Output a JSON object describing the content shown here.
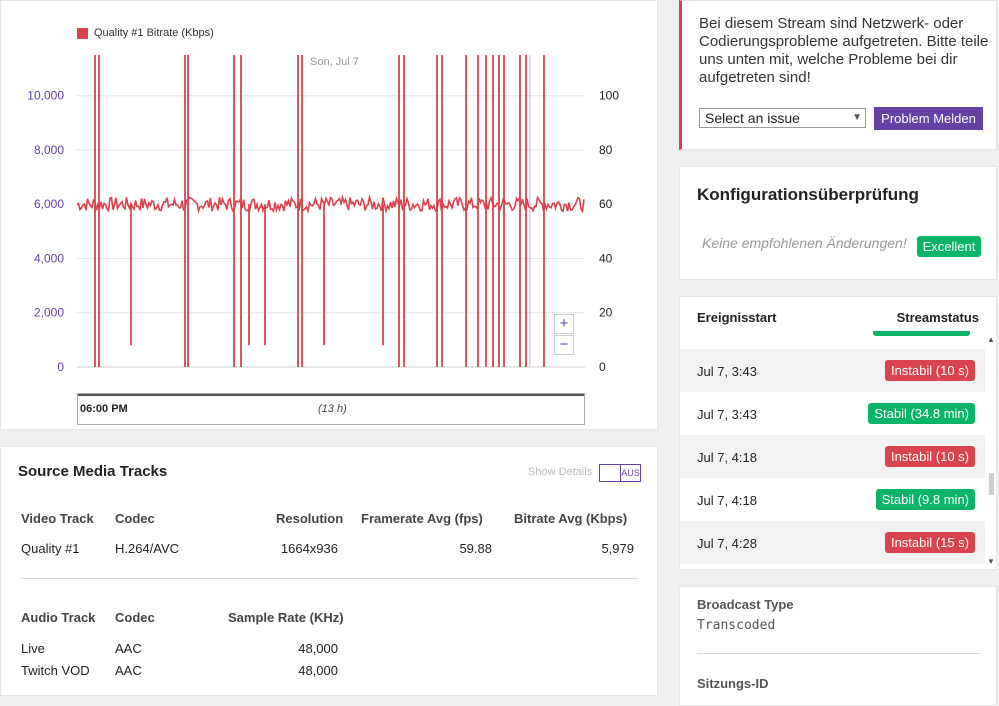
{
  "chart": {
    "legend": "Quality #1 Bitrate (Kbps)",
    "date_label": "Son, Jul 7",
    "left_ticks": [
      "10,000",
      "8,000",
      "6,000",
      "4,000",
      "2,000",
      "0"
    ],
    "right_ticks": [
      "100",
      "80",
      "60",
      "40",
      "20",
      "0"
    ],
    "zoom_in": "+",
    "zoom_out": "−",
    "navigator_time": "06:00 PM",
    "navigator_duration": "(13 h)",
    "colors": {
      "series": "#d9434e",
      "left_axis": "#6441a5"
    }
  },
  "chart_data": {
    "type": "line",
    "series": [
      {
        "name": "Quality #1 Bitrate (Kbps)",
        "baseline": 6000,
        "drops_to": 0
      }
    ],
    "ylim_left": [
      0,
      11500
    ],
    "ylim_right": [
      0,
      115
    ],
    "x_label_start": "Son, Jul 7"
  },
  "tracks": {
    "title": "Source Media Tracks",
    "show_details": "Show Details",
    "toggle_value": "AUS",
    "video_headers": [
      "Video Track",
      "Codec",
      "Resolution",
      "Framerate Avg (fps)",
      "Bitrate Avg (Kbps)"
    ],
    "video_rows": [
      [
        "Quality #1",
        "H.264/AVC",
        "1664x936",
        "59.88",
        "5,979"
      ]
    ],
    "audio_headers": [
      "Audio Track",
      "Codec",
      "Sample Rate (KHz)"
    ],
    "audio_rows": [
      [
        "Live",
        "AAC",
        "48,000"
      ],
      [
        "Twitch VOD",
        "AAC",
        "48,000"
      ]
    ]
  },
  "issue": {
    "text": "Bei diesem Stream sind Netzwerk- oder Codierungsprobleme aufgetreten. Bitte teile uns unten mit, welche Probleme bei dir aufgetreten sind!",
    "select_value": "Select an issue",
    "button": "Problem Melden"
  },
  "config": {
    "title": "Konfigurationsüberprüfung",
    "note": "Keine empfohlenen Änderungen!",
    "badge": "Excellent"
  },
  "events": {
    "header_start": "Ereignisstart",
    "header_status": "Streamstatus",
    "rows": [
      {
        "date": "Jul 7, 3:43",
        "status": "Instabil (10 s)",
        "kind": "red"
      },
      {
        "date": "Jul 7, 3:43",
        "status": "Stabil (34.8 min)",
        "kind": "green"
      },
      {
        "date": "Jul 7, 4:18",
        "status": "Instabil (10 s)",
        "kind": "red"
      },
      {
        "date": "Jul 7, 4:18",
        "status": "Stabil (9.8 min)",
        "kind": "green"
      },
      {
        "date": "Jul 7, 4:28",
        "status": "Instabil (15 s)",
        "kind": "red"
      }
    ]
  },
  "info": {
    "broadcast_label": "Broadcast Type",
    "broadcast_value": "Transcoded",
    "session_label": "Sitzungs-ID"
  }
}
